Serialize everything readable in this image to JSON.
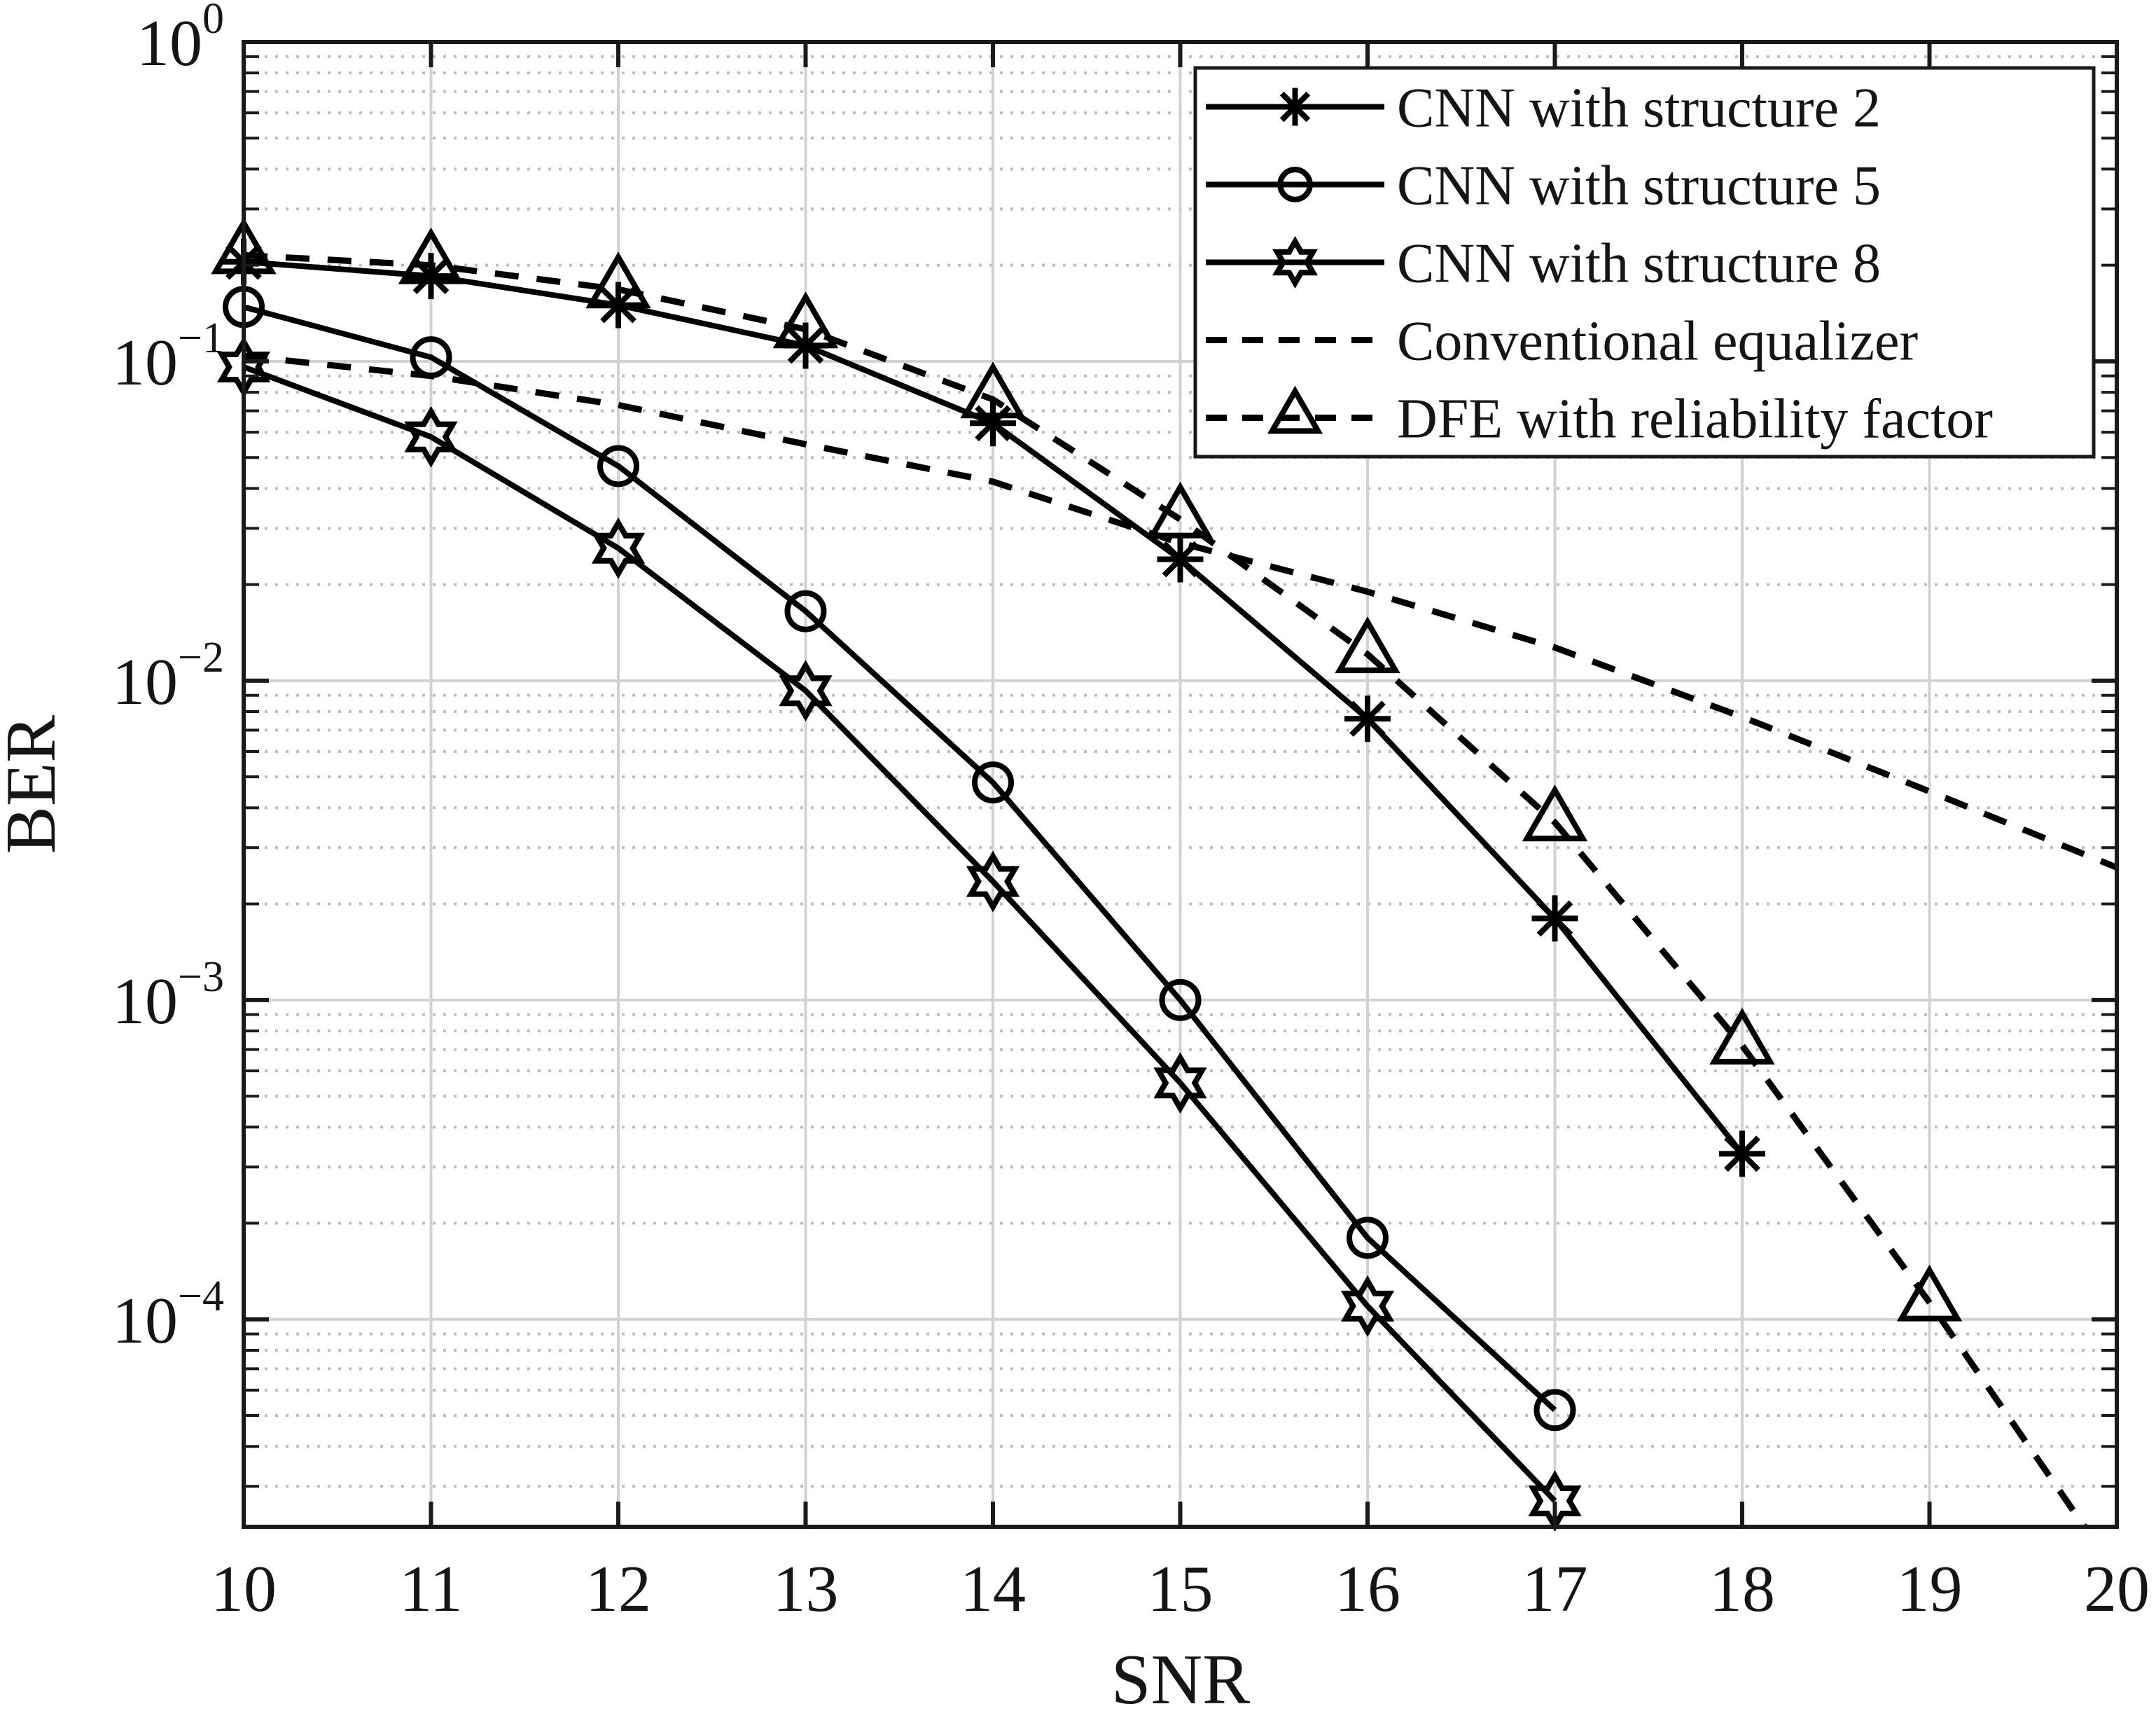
{
  "figure": {
    "background": "#ffffff",
    "axis_color": "#1a1a1a",
    "line_color": "#000000",
    "grid_major_color": "#d2d2d2",
    "grid_minor_color": "#bdbdbd"
  },
  "chart_data": {
    "type": "line",
    "title": "",
    "xlabel": "SNR",
    "ylabel": "BER",
    "xlim": [
      10,
      20
    ],
    "ylim": [
      2.24e-05,
      1
    ],
    "x_ticks": [
      10,
      11,
      12,
      13,
      14,
      15,
      16,
      17,
      18,
      19,
      20
    ],
    "y_tick_exponents": [
      0,
      -1,
      -2,
      -3,
      -4
    ],
    "grid": "on",
    "minor_grid": "on",
    "legend_position": "top-right",
    "series": [
      {
        "name": "CNN with structure 2",
        "linestyle": "solid",
        "marker": "asterisk",
        "x": [
          10,
          11,
          12,
          13,
          14,
          15,
          16,
          17,
          18
        ],
        "y": [
          0.205,
          0.185,
          0.15,
          0.112,
          0.064,
          0.024,
          0.0076,
          0.0018,
          0.00033
        ]
      },
      {
        "name": "CNN with structure 5",
        "linestyle": "solid",
        "marker": "circle",
        "x": [
          10,
          11,
          12,
          13,
          14,
          15,
          16,
          17
        ],
        "y": [
          0.148,
          0.103,
          0.047,
          0.0165,
          0.0048,
          0.001,
          0.00018,
          5.2e-05
        ]
      },
      {
        "name": "CNN with structure 8",
        "linestyle": "solid",
        "marker": "hexagram",
        "x": [
          10,
          11,
          12,
          13,
          14,
          15,
          16,
          17
        ],
        "y": [
          0.096,
          0.058,
          0.026,
          0.0093,
          0.00235,
          0.00055,
          0.00011,
          2.7e-05
        ]
      },
      {
        "name": "Conventional equalizer",
        "linestyle": "dashed",
        "marker": "none",
        "x": [
          10,
          11,
          12,
          13,
          14,
          15,
          16,
          17,
          18,
          19,
          20
        ],
        "y": [
          0.104,
          0.09,
          0.073,
          0.055,
          0.042,
          0.027,
          0.019,
          0.0127,
          0.0077,
          0.0045,
          0.0026
        ]
      },
      {
        "name": "DFE with reliability factor",
        "linestyle": "dashed",
        "marker": "triangle",
        "x": [
          10,
          11,
          12,
          13,
          14,
          15,
          16,
          17,
          18,
          19,
          20
        ],
        "y": [
          0.215,
          0.2,
          0.168,
          0.126,
          0.076,
          0.032,
          0.0121,
          0.0036,
          0.00072,
          0.000113,
          1.6e-05
        ]
      }
    ]
  }
}
